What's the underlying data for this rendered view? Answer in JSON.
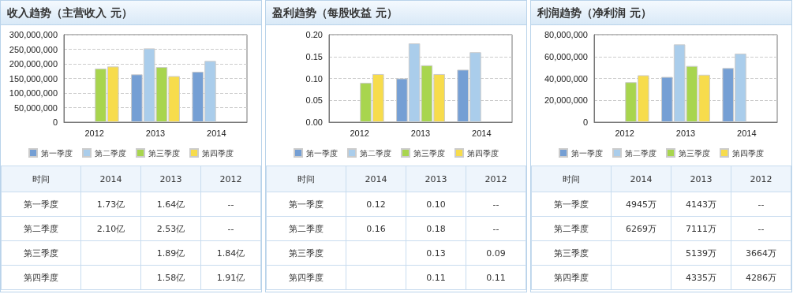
{
  "chart_data": [
    {
      "type": "bar",
      "title": "收入趋势（主营收入 元）",
      "categories": [
        "2012",
        "2013",
        "2014"
      ],
      "ylim": [
        0,
        300000000
      ],
      "yticks": [
        {
          "value": 0,
          "label": "0"
        },
        {
          "value": 50000000,
          "label": "50,000,000"
        },
        {
          "value": 100000000,
          "label": "100,000,000"
        },
        {
          "value": 150000000,
          "label": "150,000,000"
        },
        {
          "value": 200000000,
          "label": "200,000,000"
        },
        {
          "value": 250000000,
          "label": "250,000,000"
        },
        {
          "value": 300000000,
          "label": "300,000,000"
        }
      ],
      "grid": "y",
      "legend": "bottom",
      "series": [
        {
          "name": "第一季度",
          "color": "#759fd4",
          "values": [
            null,
            164000000,
            173000000
          ]
        },
        {
          "name": "第二季度",
          "color": "#aacdeb",
          "values": [
            null,
            253000000,
            210000000
          ]
        },
        {
          "name": "第三季度",
          "color": "#a8d54e",
          "values": [
            184000000,
            189000000,
            null
          ]
        },
        {
          "name": "第四季度",
          "color": "#f7dc4c",
          "values": [
            191000000,
            158000000,
            null
          ]
        }
      ]
    },
    {
      "type": "other",
      "annotations": [
        "时间"
      ],
      "categories": [
        "2014",
        "2013",
        "2012"
      ],
      "y_categories": [
        "第一季度",
        "第二季度",
        "第三季度",
        "第四季度"
      ],
      "cell_labels": [
        [
          "1.73亿",
          "1.64亿",
          "--"
        ],
        [
          "2.10亿",
          "2.53亿",
          "--"
        ],
        [
          null,
          "1.89亿",
          "1.84亿"
        ],
        [
          null,
          "1.58亿",
          "1.91亿"
        ]
      ]
    },
    {
      "type": "bar",
      "title": "盈利趋势（每股收益 元）",
      "categories": [
        "2012",
        "2013",
        "2014"
      ],
      "ylim": [
        0,
        0.2
      ],
      "yticks": [
        {
          "value": 0,
          "label": "0.00"
        },
        {
          "value": 0.05,
          "label": "0.05"
        },
        {
          "value": 0.1,
          "label": "0.10"
        },
        {
          "value": 0.15,
          "label": "0.15"
        },
        {
          "value": 0.2,
          "label": "0.20"
        }
      ],
      "grid": "y",
      "legend": "bottom",
      "series": [
        {
          "name": "第一季度",
          "color": "#759fd4",
          "values": [
            null,
            0.1,
            0.12
          ]
        },
        {
          "name": "第二季度",
          "color": "#aacdeb",
          "values": [
            null,
            0.18,
            0.16
          ]
        },
        {
          "name": "第三季度",
          "color": "#a8d54e",
          "values": [
            0.09,
            0.13,
            null
          ]
        },
        {
          "name": "第四季度",
          "color": "#f7dc4c",
          "values": [
            0.11,
            0.11,
            null
          ]
        }
      ]
    },
    {
      "type": "other",
      "annotations": [
        "时间"
      ],
      "categories": [
        "2014",
        "2013",
        "2012"
      ],
      "y_categories": [
        "第一季度",
        "第二季度",
        "第三季度",
        "第四季度"
      ],
      "cell_labels": [
        [
          "0.12",
          "0.10",
          "--"
        ],
        [
          "0.16",
          "0.18",
          "--"
        ],
        [
          null,
          "0.13",
          "0.09"
        ],
        [
          null,
          "0.11",
          "0.11"
        ]
      ]
    },
    {
      "type": "bar",
      "title": "利润趋势（净利润 元）",
      "categories": [
        "2012",
        "2013",
        "2014"
      ],
      "ylim": [
        0,
        80000000
      ],
      "yticks": [
        {
          "value": 0,
          "label": "0"
        },
        {
          "value": 20000000,
          "label": "20,000,000"
        },
        {
          "value": 40000000,
          "label": "40,000,000"
        },
        {
          "value": 60000000,
          "label": "60,000,000"
        },
        {
          "value": 80000000,
          "label": "80,000,000"
        }
      ],
      "grid": "y",
      "legend": "bottom",
      "series": [
        {
          "name": "第一季度",
          "color": "#759fd4",
          "values": [
            null,
            41400000,
            49500000
          ]
        },
        {
          "name": "第二季度",
          "color": "#aacdeb",
          "values": [
            null,
            71100000,
            62700000
          ]
        },
        {
          "name": "第三季度",
          "color": "#a8d54e",
          "values": [
            36600000,
            51400000,
            null
          ]
        },
        {
          "name": "第四季度",
          "color": "#f7dc4c",
          "values": [
            42900000,
            43400000,
            null
          ]
        }
      ]
    },
    {
      "type": "other",
      "annotations": [
        "时间"
      ],
      "categories": [
        "2014",
        "2013",
        "2012"
      ],
      "y_categories": [
        "第一季度",
        "第二季度",
        "第三季度",
        "第四季度"
      ],
      "cell_labels": [
        [
          "4945万",
          "4143万",
          "--"
        ],
        [
          "6269万",
          "7111万",
          "--"
        ],
        [
          null,
          "5139万",
          "3664万"
        ],
        [
          null,
          "4335万",
          "4286万"
        ]
      ]
    }
  ]
}
